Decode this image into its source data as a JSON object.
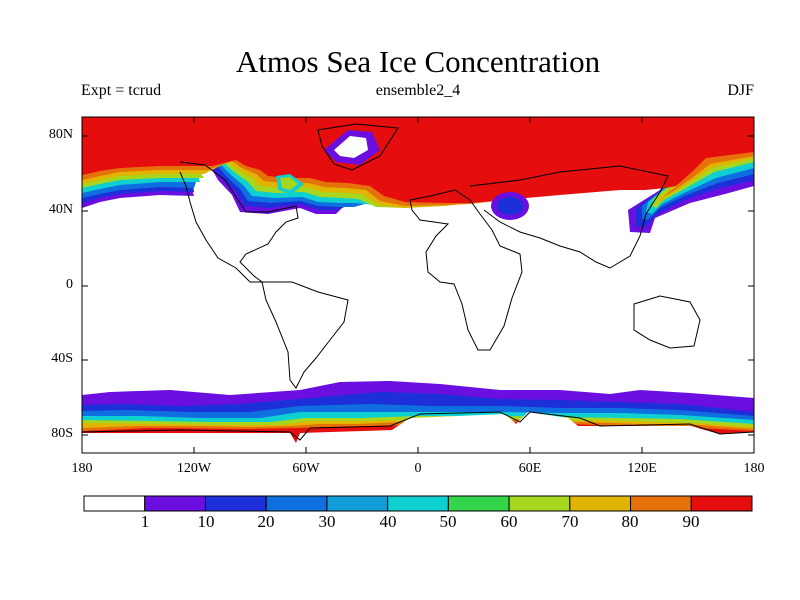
{
  "title": "Atmos Sea Ice Concentration",
  "subtitle_left": "Expt = tcrud",
  "subtitle_center": "ensemble2_4",
  "subtitle_right": "DJF",
  "y_ticks": [
    "80N",
    "40N",
    "0",
    "40S",
    "80S"
  ],
  "x_ticks": [
    "180",
    "120W",
    "60W",
    "0",
    "60E",
    "120E",
    "180"
  ],
  "colorbar": {
    "colors": [
      "#ffffff",
      "#6a0fe0",
      "#1d2fd8",
      "#0f6fe0",
      "#119ed8",
      "#0fd0d0",
      "#33d64a",
      "#a6d61e",
      "#e0b400",
      "#e6700a",
      "#e50d0d"
    ],
    "labels": [
      "1",
      "10",
      "20",
      "30",
      "40",
      "50",
      "60",
      "70",
      "80",
      "90"
    ]
  }
}
